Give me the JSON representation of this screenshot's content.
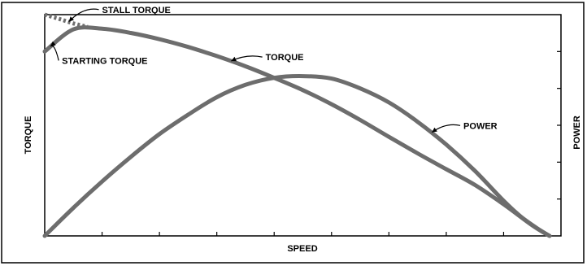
{
  "chart_data": {
    "type": "line",
    "xlabel": "SPEED",
    "ylabel_left": "TORQUE",
    "ylabel_right": "POWER",
    "xlim": [
      0,
      9
    ],
    "ylim": [
      0,
      6.3
    ],
    "grid": false,
    "x_tick_count": 9,
    "y_tick_count": 6,
    "series": [
      {
        "name": "TORQUE",
        "x": [
          0,
          0.5,
          1,
          1.5,
          2,
          2.5,
          3,
          3.5,
          4,
          4.5,
          5,
          5.5,
          6,
          6.5,
          7,
          7.5,
          8,
          8.5,
          8.8
        ],
        "y": [
          5.25,
          5.88,
          5.9,
          5.78,
          5.6,
          5.38,
          5.12,
          4.83,
          4.5,
          4.15,
          3.75,
          3.3,
          2.82,
          2.35,
          1.9,
          1.45,
          0.9,
          0.3,
          0
        ]
      },
      {
        "name": "POWER",
        "x": [
          0,
          0.5,
          1,
          1.5,
          2,
          2.5,
          3,
          3.5,
          4,
          4.5,
          5,
          5.5,
          6,
          6.5,
          7,
          7.5,
          8,
          8.3,
          8.6,
          8.8
        ],
        "y": [
          0,
          0.8,
          1.55,
          2.25,
          2.9,
          3.45,
          3.95,
          4.3,
          4.5,
          4.55,
          4.48,
          4.2,
          3.8,
          3.25,
          2.6,
          1.85,
          1.0,
          0.55,
          0.2,
          0
        ]
      },
      {
        "name": "STALL TORQUE",
        "style": "dashed",
        "x": [
          0,
          0.25,
          0.5,
          0.75
        ],
        "y": [
          6.3,
          6.18,
          6.05,
          5.95
        ]
      }
    ],
    "annotations": [
      {
        "id": "stall",
        "text": "STALL TORQUE",
        "x": 1.0,
        "y": 6.35,
        "arrow_to": [
          0.42,
          6.1
        ]
      },
      {
        "id": "starting",
        "text": "STARTING TORQUE",
        "x": 0.3,
        "y": 4.9,
        "arrow_to": [
          0.1,
          5.4
        ]
      },
      {
        "id": "torque",
        "text": "TORQUE",
        "x": 3.85,
        "y": 5.0,
        "arrow_to": [
          3.25,
          4.98
        ]
      },
      {
        "id": "power",
        "text": "POWER",
        "x": 7.3,
        "y": 3.05,
        "arrow_to": [
          6.75,
          2.95
        ]
      }
    ]
  }
}
